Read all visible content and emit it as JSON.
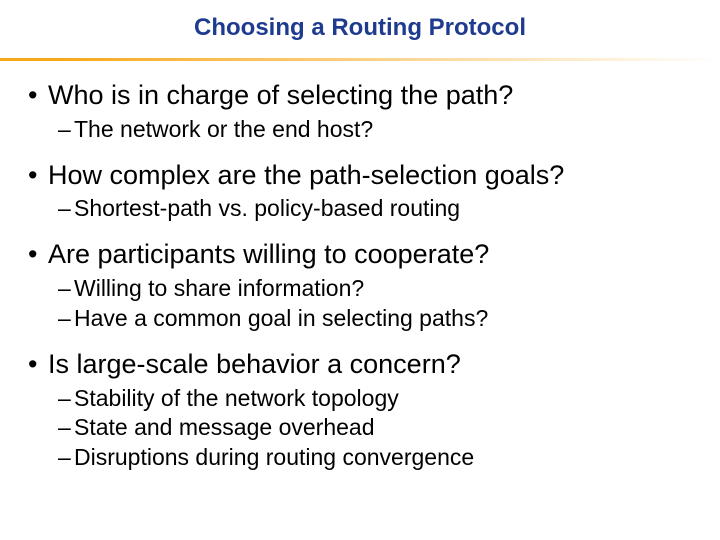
{
  "slide": {
    "title": "Choosing a Routing Protocol",
    "title_color": "#1f3b8f",
    "title_fontsize": 24,
    "divider_gradient": {
      "from": "#f7a81b",
      "to": "#ffffff"
    },
    "bullet_fontsize": 27,
    "sub_fontsize": 23,
    "bullet_color": "#000000",
    "background": "#ffffff",
    "groups": [
      {
        "bullet": "Who is in charge of selecting the path?",
        "subs": [
          "The network or the end host?"
        ]
      },
      {
        "bullet": "How complex are the path-selection goals?",
        "subs": [
          "Shortest-path vs. policy-based routing"
        ]
      },
      {
        "bullet": "Are participants willing to cooperate?",
        "subs": [
          "Willing to share information?",
          "Have a common goal in selecting paths?"
        ]
      },
      {
        "bullet": "Is large-scale behavior a concern?",
        "subs": [
          "Stability of the network topology",
          "State and message overhead",
          "Disruptions during routing convergence"
        ]
      }
    ]
  }
}
